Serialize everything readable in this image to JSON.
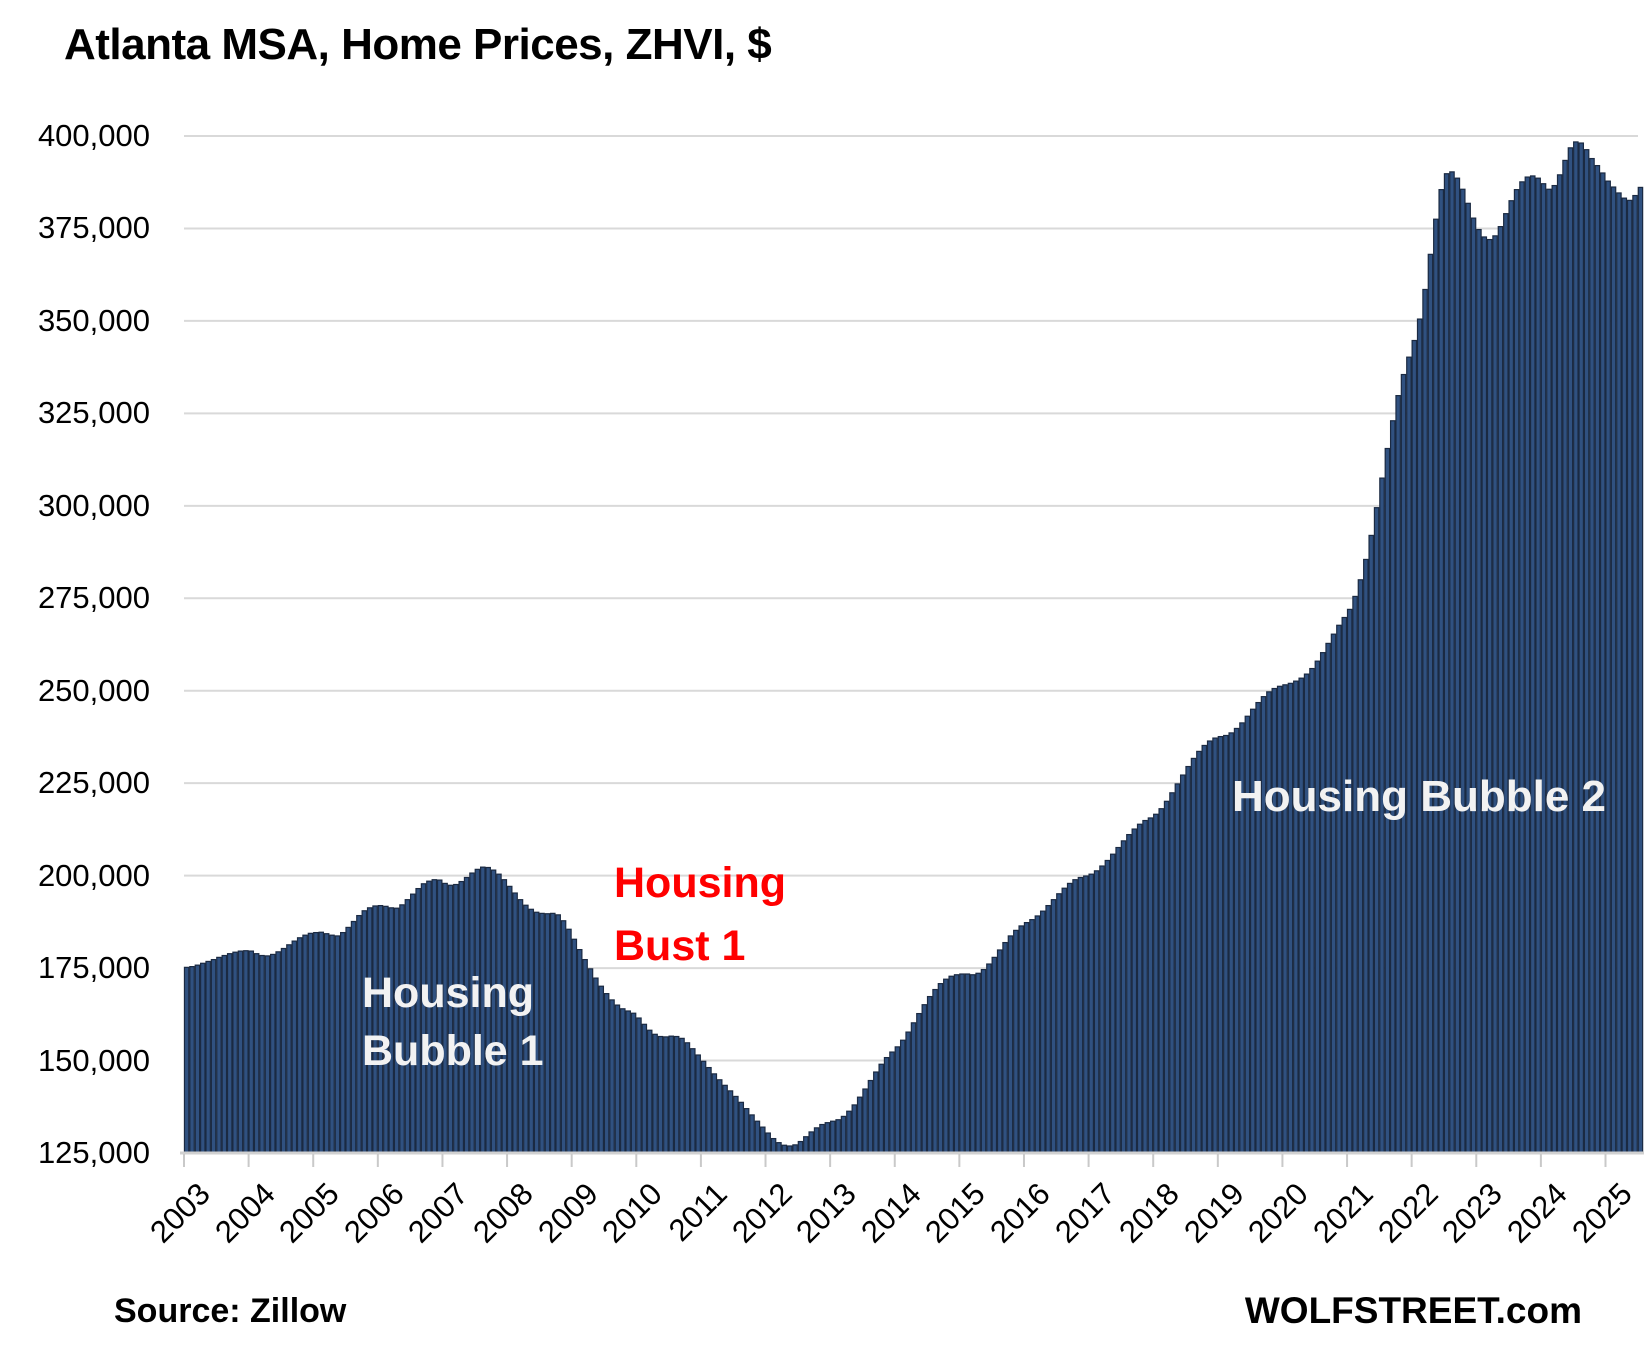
{
  "title": "Atlanta MSA, Home Prices, ZHVI, $",
  "source_note": "Source: Zillow",
  "branding": "WOLFSTREET.com",
  "annotations": {
    "bubble1": [
      "Housing",
      "Bubble 1"
    ],
    "bust1": [
      "Housing",
      "Bust 1"
    ],
    "bubble2": "Housing Bubble 2"
  },
  "colors": {
    "bar_fill": "#305180",
    "bar_stroke": "#1b2a42",
    "gridline": "#d9d9d9",
    "axis_line": "#d0d0d0",
    "tick": "#c9c9c9",
    "title_text": "#000000",
    "bubble_annotation_text": "#f2f2f2",
    "bust_annotation_text": "#ff0000",
    "background": "#ffffff"
  },
  "y_axis": {
    "min": 125000,
    "max": 400000,
    "step": 25000,
    "labels": [
      "400,000",
      "375,000",
      "350,000",
      "325,000",
      "300,000",
      "275,000",
      "250,000",
      "225,000",
      "200,000",
      "175,000",
      "150,000",
      "125,000"
    ]
  },
  "x_axis": {
    "years": [
      "2003",
      "2004",
      "2005",
      "2006",
      "2007",
      "2008",
      "2009",
      "2010",
      "2011",
      "2012",
      "2013",
      "2014",
      "2015",
      "2016",
      "2017",
      "2018",
      "2019",
      "2020",
      "2021",
      "2022",
      "2023",
      "2024",
      "2025"
    ]
  },
  "chart_data": {
    "type": "bar",
    "series_name": "Atlanta MSA Zillow Home Value Index",
    "unit": "USD",
    "frequency": "monthly",
    "start": "2003-01",
    "end": "2025-07",
    "title": "Atlanta MSA, Home Prices, ZHVI, $",
    "xlabel": "",
    "ylabel": "",
    "ylim": [
      125000,
      400000
    ],
    "grid": true,
    "legend_position": "none",
    "values": [
      175200,
      175400,
      175800,
      176300,
      176800,
      177300,
      177900,
      178400,
      178900,
      179300,
      179600,
      179700,
      179600,
      178900,
      178400,
      178300,
      178700,
      179400,
      180300,
      181300,
      182300,
      183200,
      183900,
      184400,
      184600,
      184700,
      184300,
      183900,
      183700,
      184600,
      186000,
      187600,
      189200,
      190500,
      191300,
      191800,
      191900,
      191700,
      191300,
      191200,
      192100,
      193500,
      195000,
      196500,
      197800,
      198500,
      198900,
      198800,
      197900,
      197400,
      197600,
      198400,
      199500,
      200700,
      201700,
      202300,
      202200,
      201500,
      200400,
      198900,
      197100,
      195300,
      193500,
      192000,
      190900,
      190100,
      189800,
      189700,
      189800,
      189400,
      187800,
      185500,
      182800,
      180000,
      177300,
      174800,
      172300,
      170100,
      168100,
      166400,
      165000,
      164000,
      163400,
      162800,
      161500,
      159800,
      158200,
      157100,
      156500,
      156400,
      156600,
      156500,
      156000,
      154800,
      153200,
      151500,
      149800,
      148100,
      146400,
      144800,
      143300,
      141800,
      140300,
      138700,
      137000,
      135300,
      133600,
      132000,
      130400,
      128900,
      127800,
      127100,
      126900,
      127200,
      128100,
      129400,
      130700,
      131800,
      132700,
      133200,
      133600,
      134000,
      134900,
      136300,
      138000,
      140100,
      142300,
      144600,
      146900,
      149000,
      150800,
      152300,
      153700,
      155500,
      157700,
      160200,
      162700,
      165100,
      167300,
      169200,
      170800,
      172000,
      172800,
      173200,
      173400,
      173400,
      173200,
      173600,
      174600,
      176100,
      177900,
      179900,
      181900,
      183700,
      185200,
      186400,
      187300,
      188100,
      189100,
      190400,
      191900,
      193500,
      195100,
      196600,
      197900,
      198900,
      199500,
      199900,
      200400,
      201300,
      202600,
      204100,
      205800,
      207600,
      209400,
      211100,
      212600,
      213900,
      214900,
      215600,
      216600,
      218100,
      220100,
      222400,
      224800,
      227200,
      229500,
      231700,
      233600,
      235200,
      236400,
      237200,
      237600,
      237900,
      238600,
      239800,
      241300,
      243100,
      245000,
      246800,
      248400,
      249700,
      250600,
      251200,
      251600,
      252000,
      252600,
      253400,
      254500,
      256000,
      258000,
      260300,
      262800,
      265300,
      267700,
      269800,
      272000,
      275500,
      280000,
      285500,
      292000,
      299500,
      307500,
      315500,
      323000,
      329800,
      335500,
      340200,
      344700,
      350500,
      358500,
      368000,
      377500,
      385500,
      389800,
      390300,
      388600,
      385600,
      381800,
      377800,
      374700,
      372700,
      372000,
      373000,
      375500,
      379000,
      382500,
      385500,
      387600,
      388900,
      389200,
      388600,
      387100,
      385600,
      386600,
      389500,
      393400,
      396800,
      398400,
      398100,
      396300,
      393900,
      392000,
      390000,
      387800,
      386200,
      384600,
      383200,
      382600,
      383900,
      386100
    ]
  }
}
